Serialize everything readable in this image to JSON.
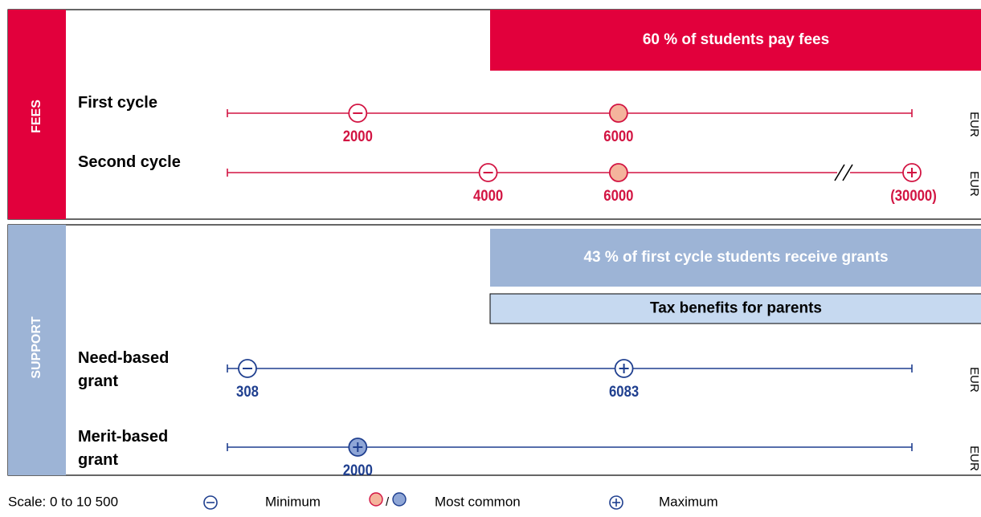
{
  "sections": [
    {
      "label": "FEES",
      "color": "#e2003c",
      "line_color": "#d21442",
      "common_fill": "#f4b49c",
      "banners": [
        {
          "text": "60 % of students pay fees",
          "style": "dark"
        }
      ],
      "rows": [
        {
          "label": "First cycle",
          "markers": [
            {
              "kinds": [
                "minimum"
              ],
              "value": 2000
            },
            {
              "kinds": [
                "most_common"
              ],
              "value": 6000
            }
          ]
        },
        {
          "label": "Second cycle",
          "markers": [
            {
              "kinds": [
                "minimum"
              ],
              "value": 4000
            },
            {
              "kinds": [
                "most_common"
              ],
              "value": 6000
            },
            {
              "kinds": [
                "maximum"
              ],
              "value": 30000,
              "label": "(30000)",
              "off_scale": true
            }
          ]
        }
      ]
    },
    {
      "label": "SUPPORT",
      "color": "#9db4d6",
      "line_color": "#1f3f8f",
      "common_fill": "#8fa6d6",
      "banners": [
        {
          "text": "43 % of first cycle students receive grants",
          "style": "dark"
        },
        {
          "text": "Tax benefits for parents",
          "style": "light"
        }
      ],
      "rows": [
        {
          "label": "Need-based grant",
          "markers": [
            {
              "kinds": [
                "minimum"
              ],
              "value": 308
            },
            {
              "kinds": [
                "maximum"
              ],
              "value": 6083
            }
          ]
        },
        {
          "label": "Merit-based grant",
          "markers": [
            {
              "kinds": [
                "most_common",
                "maximum"
              ],
              "value": 2000
            }
          ]
        }
      ]
    }
  ],
  "unit": "EUR",
  "scale": {
    "label": "Scale: 0 to 10 500",
    "min": 0,
    "max": 10500
  },
  "legend": {
    "minimum": "Minimum",
    "most_common": "Most common",
    "maximum": "Maximum"
  }
}
